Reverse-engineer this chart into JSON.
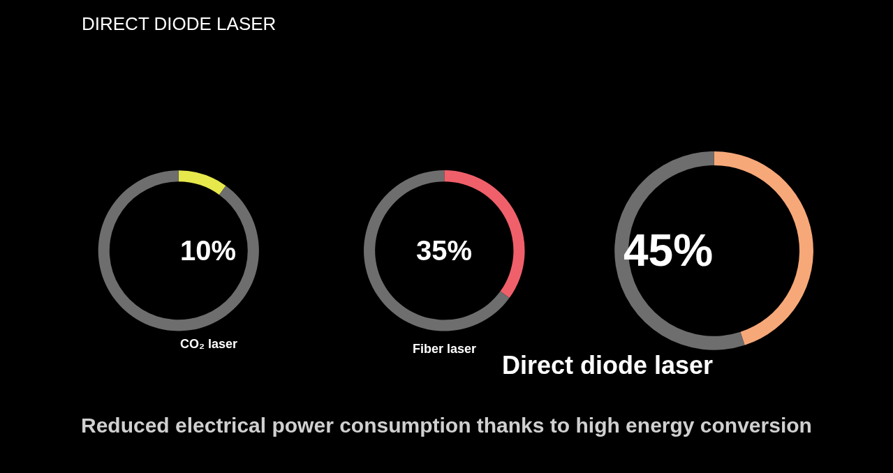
{
  "chart_data": [
    {
      "type": "donut",
      "title": "CO₂ laser",
      "categories": [
        null,
        null
      ],
      "values": [
        10,
        90
      ],
      "colors": [
        "#e6e84c",
        "#6e6e6e"
      ],
      "annotations": [
        "10%"
      ]
    },
    {
      "type": "donut",
      "title": "Fiber laser",
      "categories": [
        null,
        null
      ],
      "values": [
        35,
        65
      ],
      "colors": [
        "#f0606a",
        "#6e6e6e"
      ],
      "annotations": [
        "35%"
      ]
    },
    {
      "type": "donut",
      "title": "Direct diode laser",
      "categories": [
        null,
        null
      ],
      "values": [
        45,
        55
      ],
      "colors": [
        "#f7a878",
        "#6e6e6e"
      ],
      "annotations": [
        "45%"
      ]
    },
    {
      "type": "other",
      "title": "DIRECT DIODE LASER",
      "annotations": [
        "Reduced electrical power consumption thanks to high energy conversion"
      ]
    }
  ]
}
